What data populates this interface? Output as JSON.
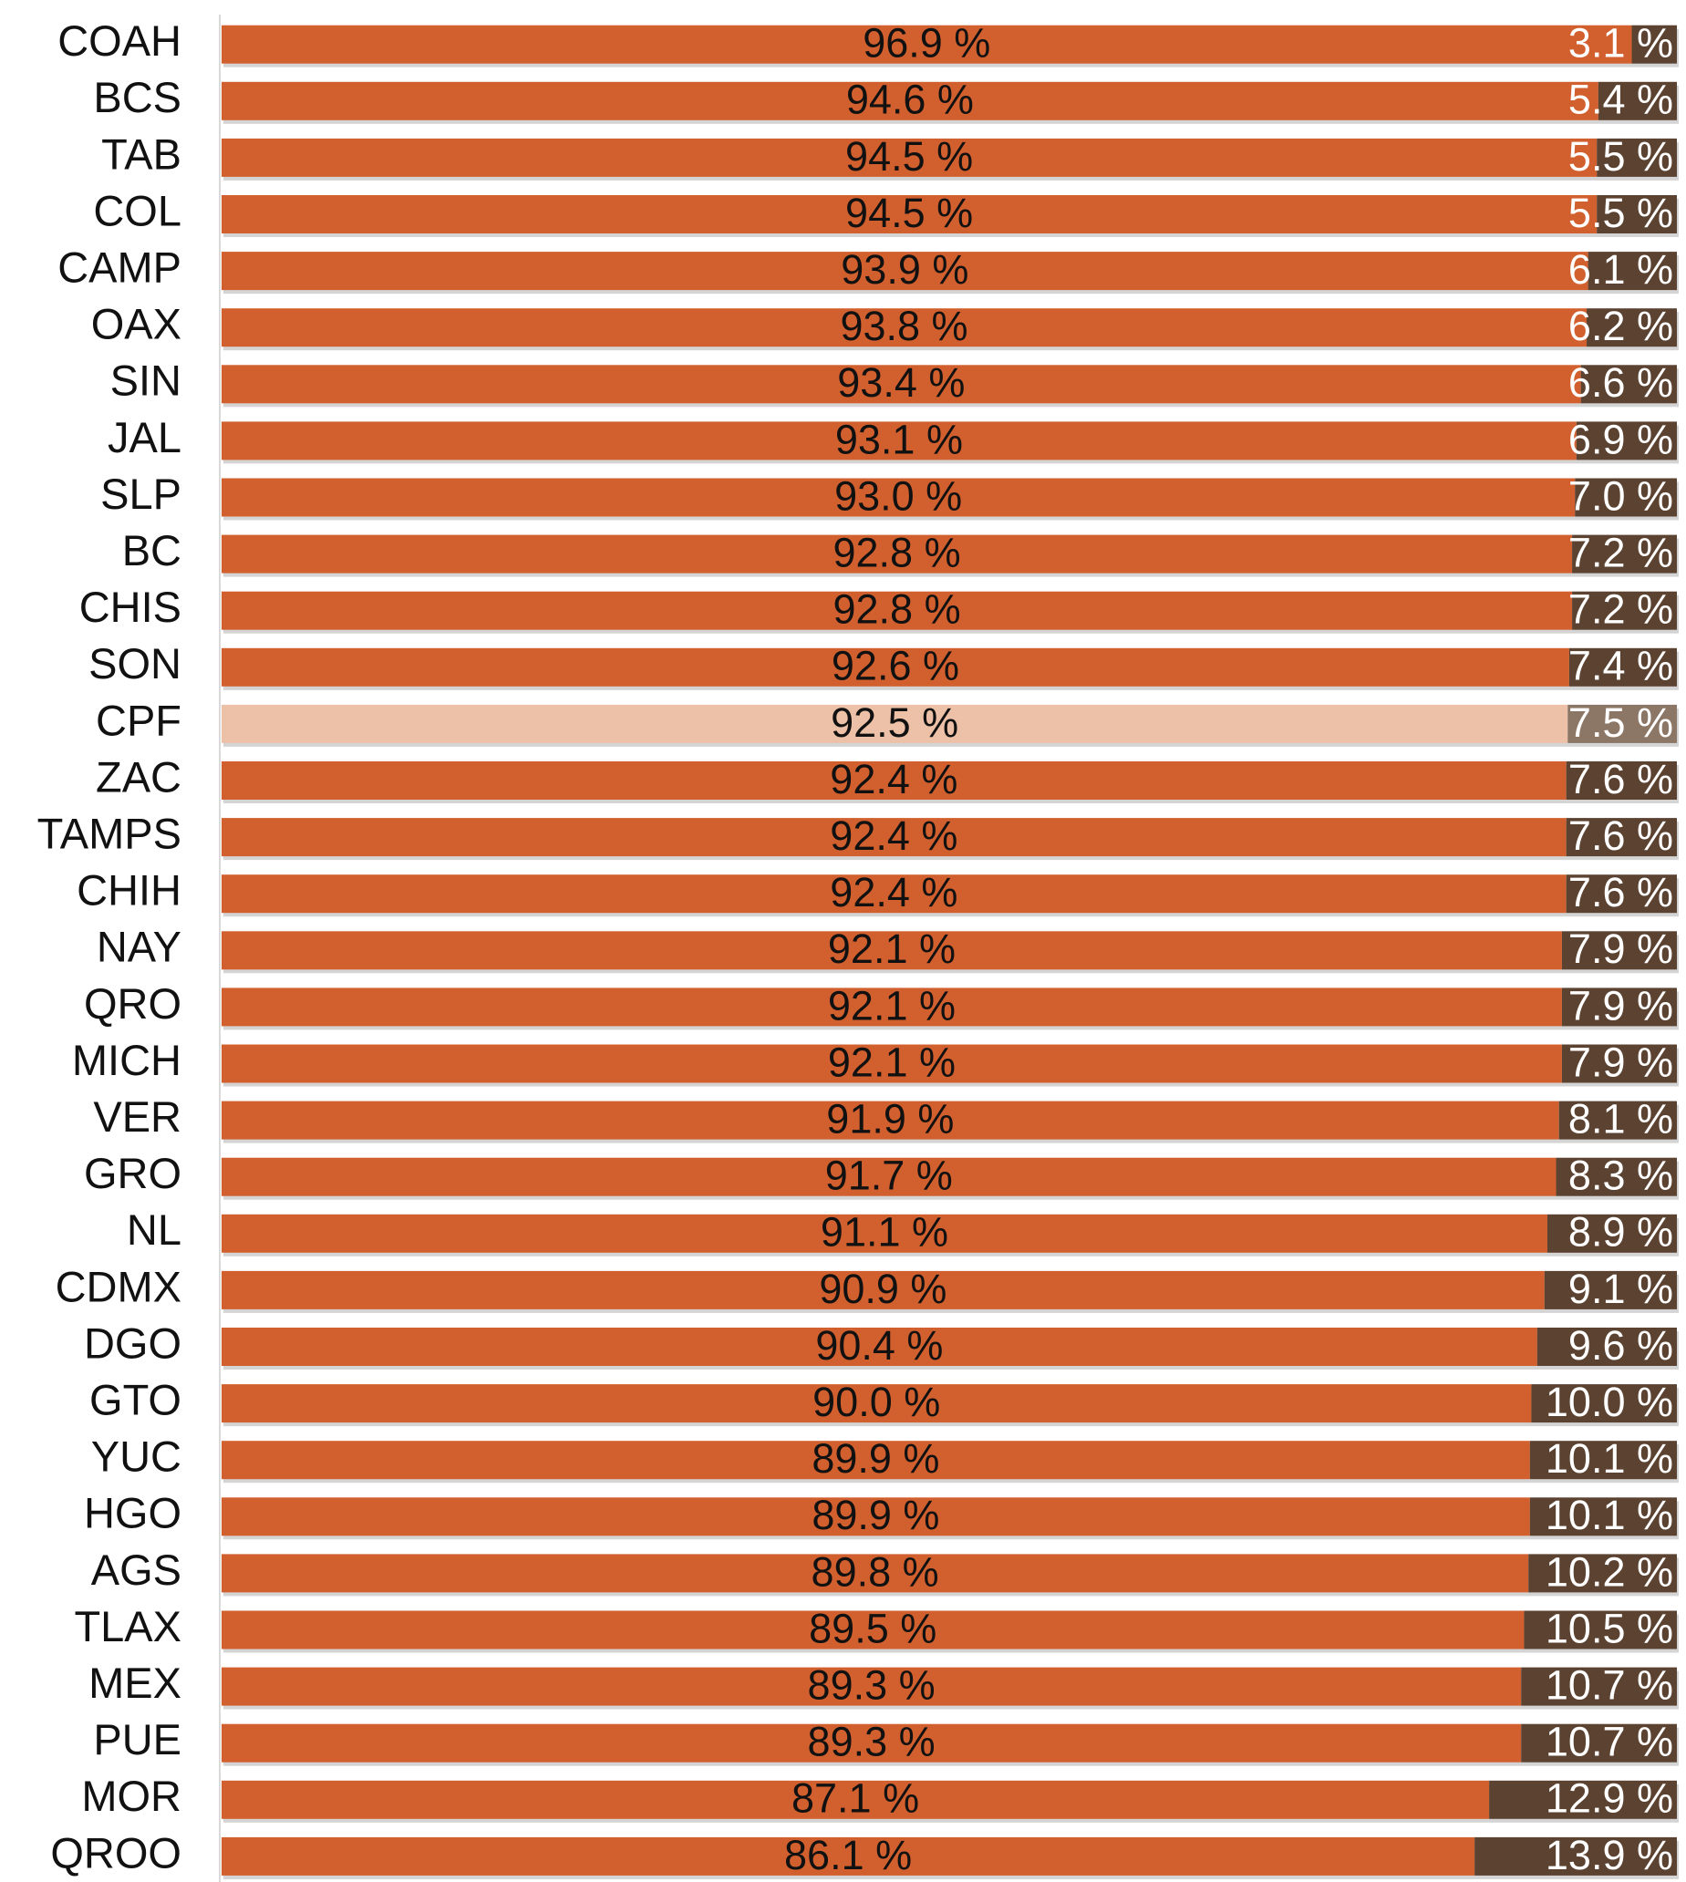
{
  "chart_data": {
    "type": "stacked-barh",
    "categories": [
      "COAH",
      "BCS",
      "TAB",
      "COL",
      "CAMP",
      "OAX",
      "SIN",
      "JAL",
      "SLP",
      "BC",
      "CHIS",
      "SON",
      "CPF",
      "ZAC",
      "TAMPS",
      "CHIH",
      "NAY",
      "QRO",
      "MICH",
      "VER",
      "GRO",
      "NL",
      "CDMX",
      "DGO",
      "GTO",
      "YUC",
      "HGO",
      "AGS",
      "TLAX",
      "MEX",
      "PUE",
      "MOR",
      "QROO"
    ],
    "series": [
      {
        "color": "#d2602e",
        "highlight_color": "#edc1a7",
        "label_color": "#111111",
        "values": [
          96.9,
          94.6,
          94.5,
          94.5,
          93.9,
          93.8,
          93.4,
          93.1,
          93.0,
          92.8,
          92.8,
          92.6,
          92.5,
          92.4,
          92.4,
          92.4,
          92.1,
          92.1,
          92.1,
          91.9,
          91.7,
          91.1,
          90.9,
          90.4,
          90.0,
          89.9,
          89.9,
          89.8,
          89.5,
          89.3,
          89.3,
          87.1,
          86.1
        ],
        "value_labels": [
          "96.9 %",
          "94.6 %",
          "94.5 %",
          "94.5 %",
          "93.9 %",
          "93.8 %",
          "93.4 %",
          "93.1 %",
          "93.0 %",
          "92.8 %",
          "92.8 %",
          "92.6 %",
          "92.5 %",
          "92.4 %",
          "92.4 %",
          "92.4 %",
          "92.1 %",
          "92.1 %",
          "92.1 %",
          "91.9 %",
          "91.7 %",
          "91.1 %",
          "90.9 %",
          "90.4 %",
          "90.0 %",
          "89.9 %",
          "89.9 %",
          "89.8 %",
          "89.5 %",
          "89.3 %",
          "89.3 %",
          "87.1 %",
          "86.1 %"
        ]
      },
      {
        "color": "#5b4231",
        "highlight_color": "#8c7666",
        "label_color": "#ffffff",
        "values": [
          3.1,
          5.4,
          5.5,
          5.5,
          6.1,
          6.2,
          6.6,
          6.9,
          7.0,
          7.2,
          7.2,
          7.4,
          7.5,
          7.6,
          7.6,
          7.6,
          7.9,
          7.9,
          7.9,
          8.1,
          8.3,
          8.9,
          9.1,
          9.6,
          10.0,
          10.1,
          10.1,
          10.2,
          10.5,
          10.7,
          10.7,
          12.9,
          13.9
        ],
        "value_labels": [
          "3.1 %",
          "5.4 %",
          "5.5 %",
          "5.5 %",
          "6.1 %",
          "6.2 %",
          "6.6 %",
          "6.9 %",
          "7.0 %",
          "7.2 %",
          "7.2 %",
          "7.4 %",
          "7.5 %",
          "7.6 %",
          "7.6 %",
          "7.6 %",
          "7.9 %",
          "7.9 %",
          "7.9 %",
          "8.1 %",
          "8.3 %",
          "8.9 %",
          "9.1 %",
          "9.6 %",
          "10.0 %",
          "10.1 %",
          "10.1 %",
          "10.2 %",
          "10.5 %",
          "10.7 %",
          "10.7 %",
          "12.9 %",
          "13.9 %"
        ]
      }
    ],
    "highlight": "CPF",
    "xlim": [
      0,
      100
    ]
  }
}
